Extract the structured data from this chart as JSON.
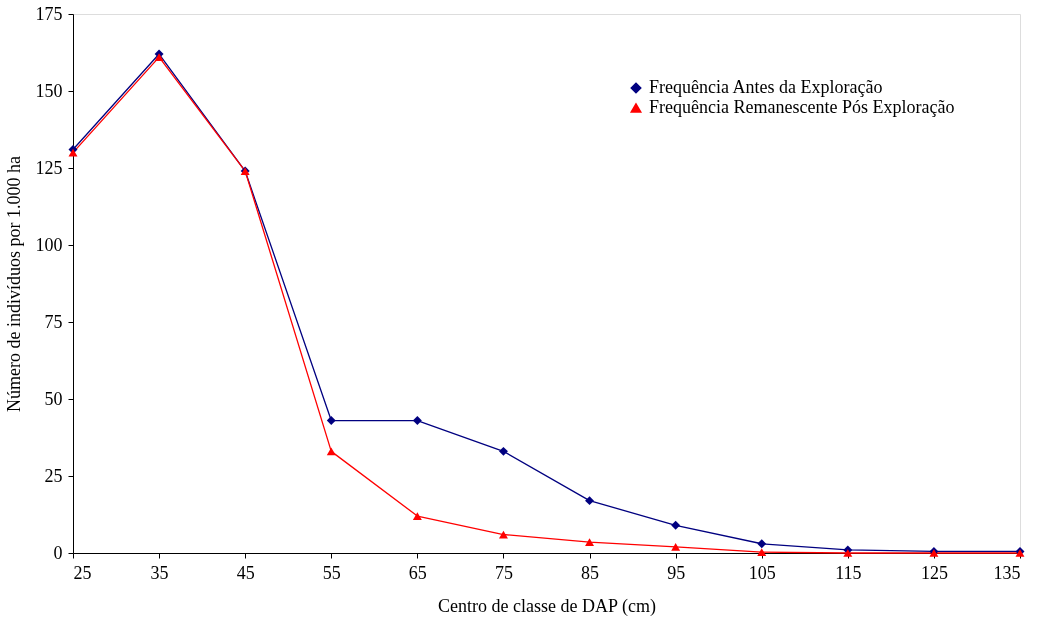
{
  "chart_data": {
    "type": "line",
    "xlabel": "Centro de classe de DAP (cm)",
    "ylabel": "Número de indivíduos por 1.000 ha",
    "x": [
      25,
      35,
      45,
      55,
      65,
      75,
      85,
      95,
      105,
      115,
      125,
      135
    ],
    "series": [
      {
        "name": "Frequência Antes da Exploração",
        "color": "#000080",
        "marker": "diamond",
        "values": [
          131,
          162,
          124,
          43,
          43,
          33,
          17,
          9,
          3,
          1,
          0.5,
          0.5
        ]
      },
      {
        "name": "Frequência Remanescente Pós Exploração",
        "color": "#ff0000",
        "marker": "triangle",
        "values": [
          130,
          161,
          124,
          33,
          12,
          6,
          3.5,
          2,
          0.3,
          0,
          0,
          0
        ]
      }
    ],
    "xlim": [
      25,
      135
    ],
    "xticks": [
      25,
      35,
      45,
      55,
      65,
      75,
      85,
      95,
      105,
      115,
      125,
      135
    ],
    "ylim": [
      0,
      175
    ],
    "yticks": [
      0,
      25,
      50,
      75,
      100,
      125,
      150,
      175
    ],
    "grid": false,
    "legend": "top right",
    "line_style": "solid"
  }
}
